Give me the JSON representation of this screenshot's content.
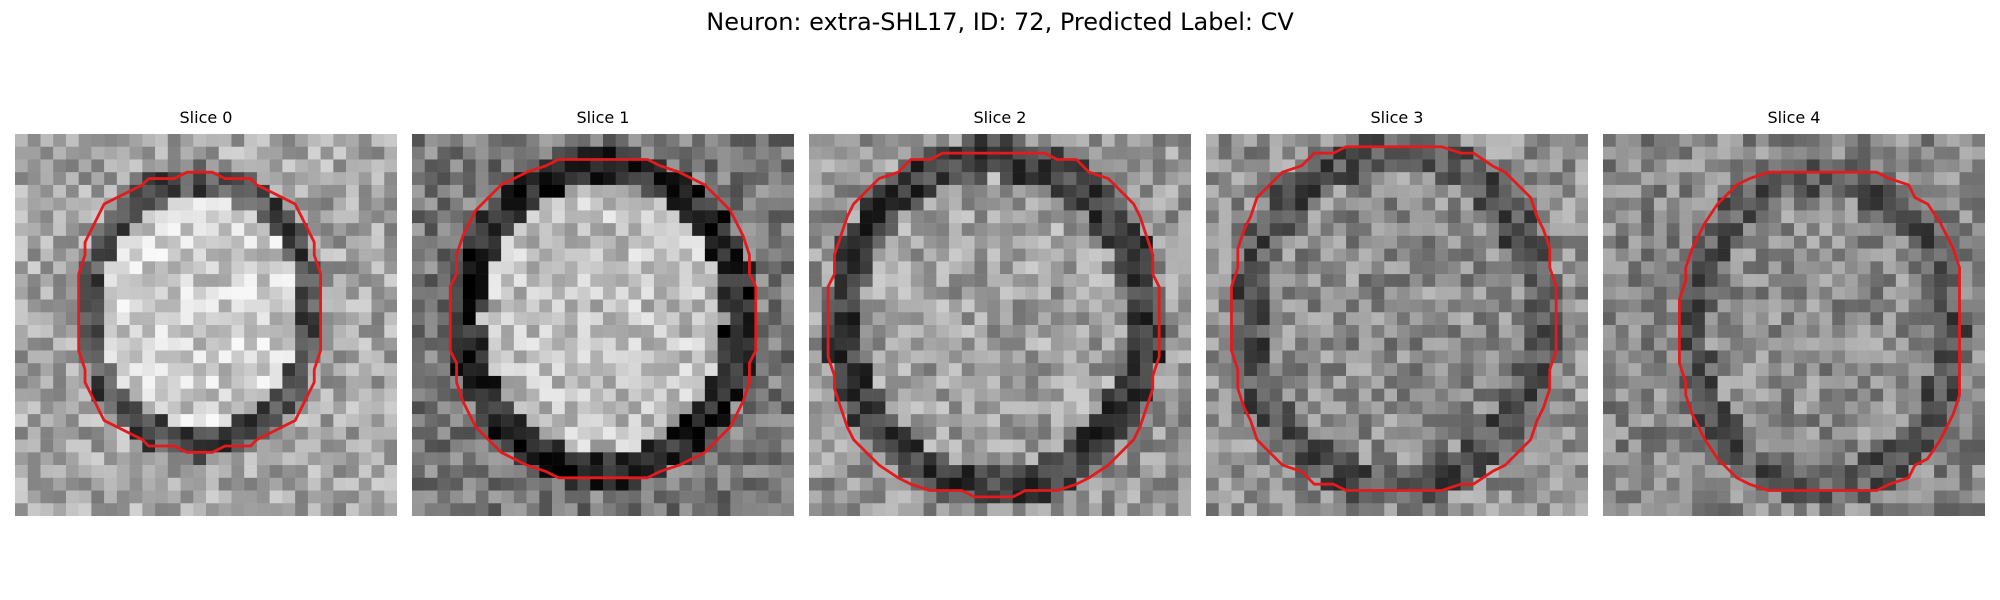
{
  "figure": {
    "title": "Neuron: extra-SHL17, ID: 72, Predicted Label: CV"
  },
  "panels": [
    {
      "title": "Slice 0"
    },
    {
      "title": "Slice 1"
    },
    {
      "title": "Slice 2"
    },
    {
      "title": "Slice 3"
    },
    {
      "title": "Slice 4"
    }
  ],
  "colors": {
    "contour": "#e41a1c",
    "background": "#ffffff"
  }
}
